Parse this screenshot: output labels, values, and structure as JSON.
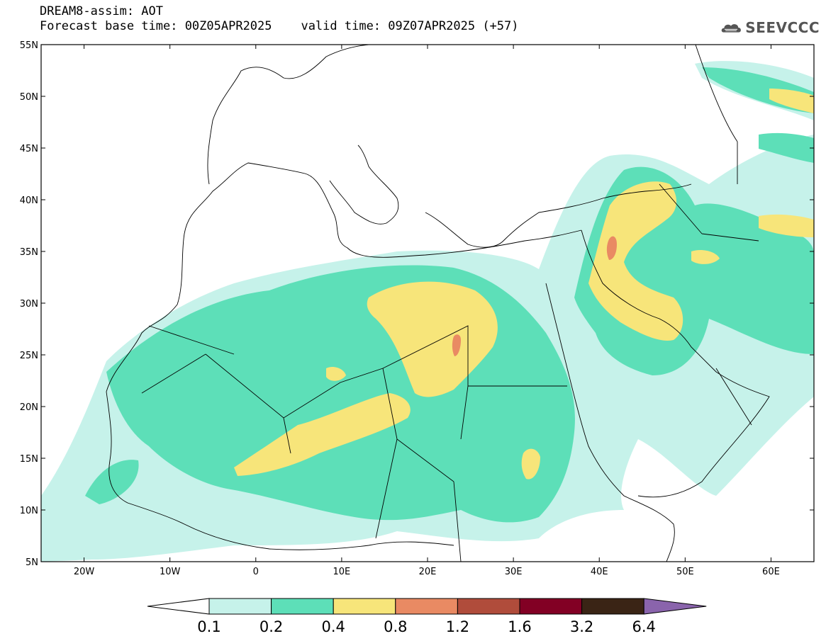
{
  "title": {
    "line1": "DREAM8-assim: AOT",
    "line2": "Forecast base time: 00Z05APR2025    valid time: 09Z07APR2025 (+57)"
  },
  "logo": {
    "text": "SEEVCCC",
    "icon": "cloud-icon"
  },
  "map": {
    "lat_ticks": [
      "55N",
      "50N",
      "45N",
      "40N",
      "35N",
      "30N",
      "25N",
      "20N",
      "15N",
      "10N",
      "5N"
    ],
    "lon_ticks": [
      "20W",
      "10W",
      "0",
      "10E",
      "20E",
      "30E",
      "40E",
      "50E",
      "60E"
    ],
    "lat_range": [
      5,
      55
    ],
    "lon_range": [
      -25,
      65
    ]
  },
  "colorbar": {
    "labels": [
      "0.1",
      "0.2",
      "0.4",
      "0.8",
      "1.2",
      "1.6",
      "3.2",
      "6.4"
    ],
    "colors": [
      "#ffffff",
      "#c6f2ea",
      "#5ddfb8",
      "#f7e57a",
      "#e98a63",
      "#b04c3b",
      "#820024",
      "#3a2415",
      "#8a64ac"
    ]
  }
}
